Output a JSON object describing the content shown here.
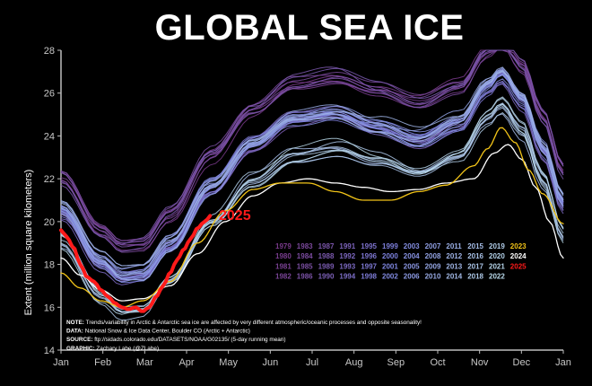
{
  "chart_data": {
    "type": "line",
    "title": "GLOBAL SEA ICE",
    "ylabel": "Extent (million square kilometers)",
    "xlabel": "",
    "ylim": [
      14,
      28
    ],
    "yticks": [
      "14",
      "16",
      "18",
      "20",
      "22",
      "24",
      "26",
      "28"
    ],
    "x_ticks": [
      "Jan",
      "Feb",
      "Mar",
      "Apr",
      "May",
      "Jun",
      "Jul",
      "Aug",
      "Sep",
      "Oct",
      "Nov",
      "Dec",
      "Jan"
    ],
    "grid": false,
    "climatology_day": [
      1,
      30,
      45,
      60,
      80,
      110,
      140,
      170,
      200,
      230,
      260,
      290,
      310,
      320,
      335,
      350,
      365
    ],
    "climatology_mean": [
      20.5,
      18.0,
      17.3,
      17.4,
      18.8,
      21.5,
      23.5,
      24.7,
      25.0,
      24.4,
      23.8,
      24.6,
      26.3,
      26.9,
      25.7,
      23.4,
      20.8
    ],
    "year_count": 47,
    "highlight_series": [
      {
        "name": "2025",
        "color": "#ff1a1a",
        "day": [
          1,
          5,
          10,
          15,
          20,
          25,
          30,
          35,
          40,
          45,
          50,
          55,
          60,
          65,
          70,
          75,
          80,
          85,
          90,
          95,
          100,
          105,
          110
        ],
        "values": [
          19.6,
          19.3,
          18.8,
          18.0,
          17.4,
          17.2,
          16.8,
          16.5,
          16.2,
          16.0,
          15.9,
          16.0,
          15.8,
          16.0,
          16.5,
          17.0,
          17.6,
          18.2,
          18.7,
          19.2,
          19.7,
          20.0,
          20.3
        ]
      },
      {
        "name": "2023",
        "color": "#f2c418",
        "day": [
          1,
          15,
          30,
          45,
          60,
          80,
          100,
          120,
          140,
          160,
          180,
          200,
          220,
          240,
          260,
          280,
          300,
          310,
          320,
          330,
          340,
          350,
          365
        ],
        "values": [
          17.6,
          16.9,
          16.3,
          16.0,
          16.3,
          17.2,
          19.0,
          20.5,
          21.5,
          21.8,
          21.8,
          21.4,
          21.0,
          21.0,
          21.4,
          21.7,
          22.6,
          23.4,
          24.4,
          23.7,
          22.4,
          21.3,
          19.9
        ]
      },
      {
        "name": "2024",
        "color": "#ffffff",
        "day": [
          1,
          15,
          30,
          45,
          60,
          80,
          100,
          120,
          140,
          160,
          180,
          200,
          220,
          240,
          260,
          280,
          300,
          315,
          325,
          335,
          345,
          355,
          365
        ],
        "values": [
          18.3,
          17.5,
          16.8,
          16.3,
          16.4,
          17.0,
          18.5,
          20.0,
          21.2,
          21.8,
          22.0,
          21.8,
          21.6,
          21.4,
          21.5,
          21.8,
          22.0,
          23.2,
          23.6,
          22.9,
          21.6,
          20.0,
          18.3
        ]
      }
    ],
    "legend_rows": [
      [
        "1979",
        "1983",
        "1987",
        "1991",
        "1995",
        "1999",
        "2003",
        "2007",
        "2011",
        "2015",
        "2019",
        "2023"
      ],
      [
        "1980",
        "1984",
        "1988",
        "1992",
        "1996",
        "2000",
        "2004",
        "2008",
        "2012",
        "2016",
        "2020",
        "2024"
      ],
      [
        "1981",
        "1985",
        "1989",
        "1993",
        "1997",
        "2001",
        "2005",
        "2009",
        "2013",
        "2017",
        "2021",
        "2025"
      ],
      [
        "1982",
        "1986",
        "1990",
        "1994",
        "1998",
        "2002",
        "2006",
        "2010",
        "2014",
        "2018",
        "2022"
      ]
    ],
    "colors": {
      "early_years": "#7a3a8c",
      "middle_years": "#7d84e0",
      "late_years": "#b9d9ea",
      "year_2023": "#f2c418",
      "year_2024": "#ffffff",
      "year_2025": "#ff1a1a"
    },
    "notes": [
      {
        "label": "NOTE:",
        "text": "Trends/variability in Arctic & Antarctic sea ice are affected by very different atmospheric/oceanic processes and opposite seasonality!"
      },
      {
        "label": "DATA:",
        "text": "National Snow & Ice Data Center, Boulder CO (Arctic + Antarctic)"
      },
      {
        "label": "SOURCE:",
        "text": "ftp://sidads.colorado.edu/DATASETS/NOAA/G02135/ (5-day running mean)"
      },
      {
        "label": "GRAPHIC:",
        "text": "Zachary Labe (@ZLabe)"
      }
    ]
  }
}
